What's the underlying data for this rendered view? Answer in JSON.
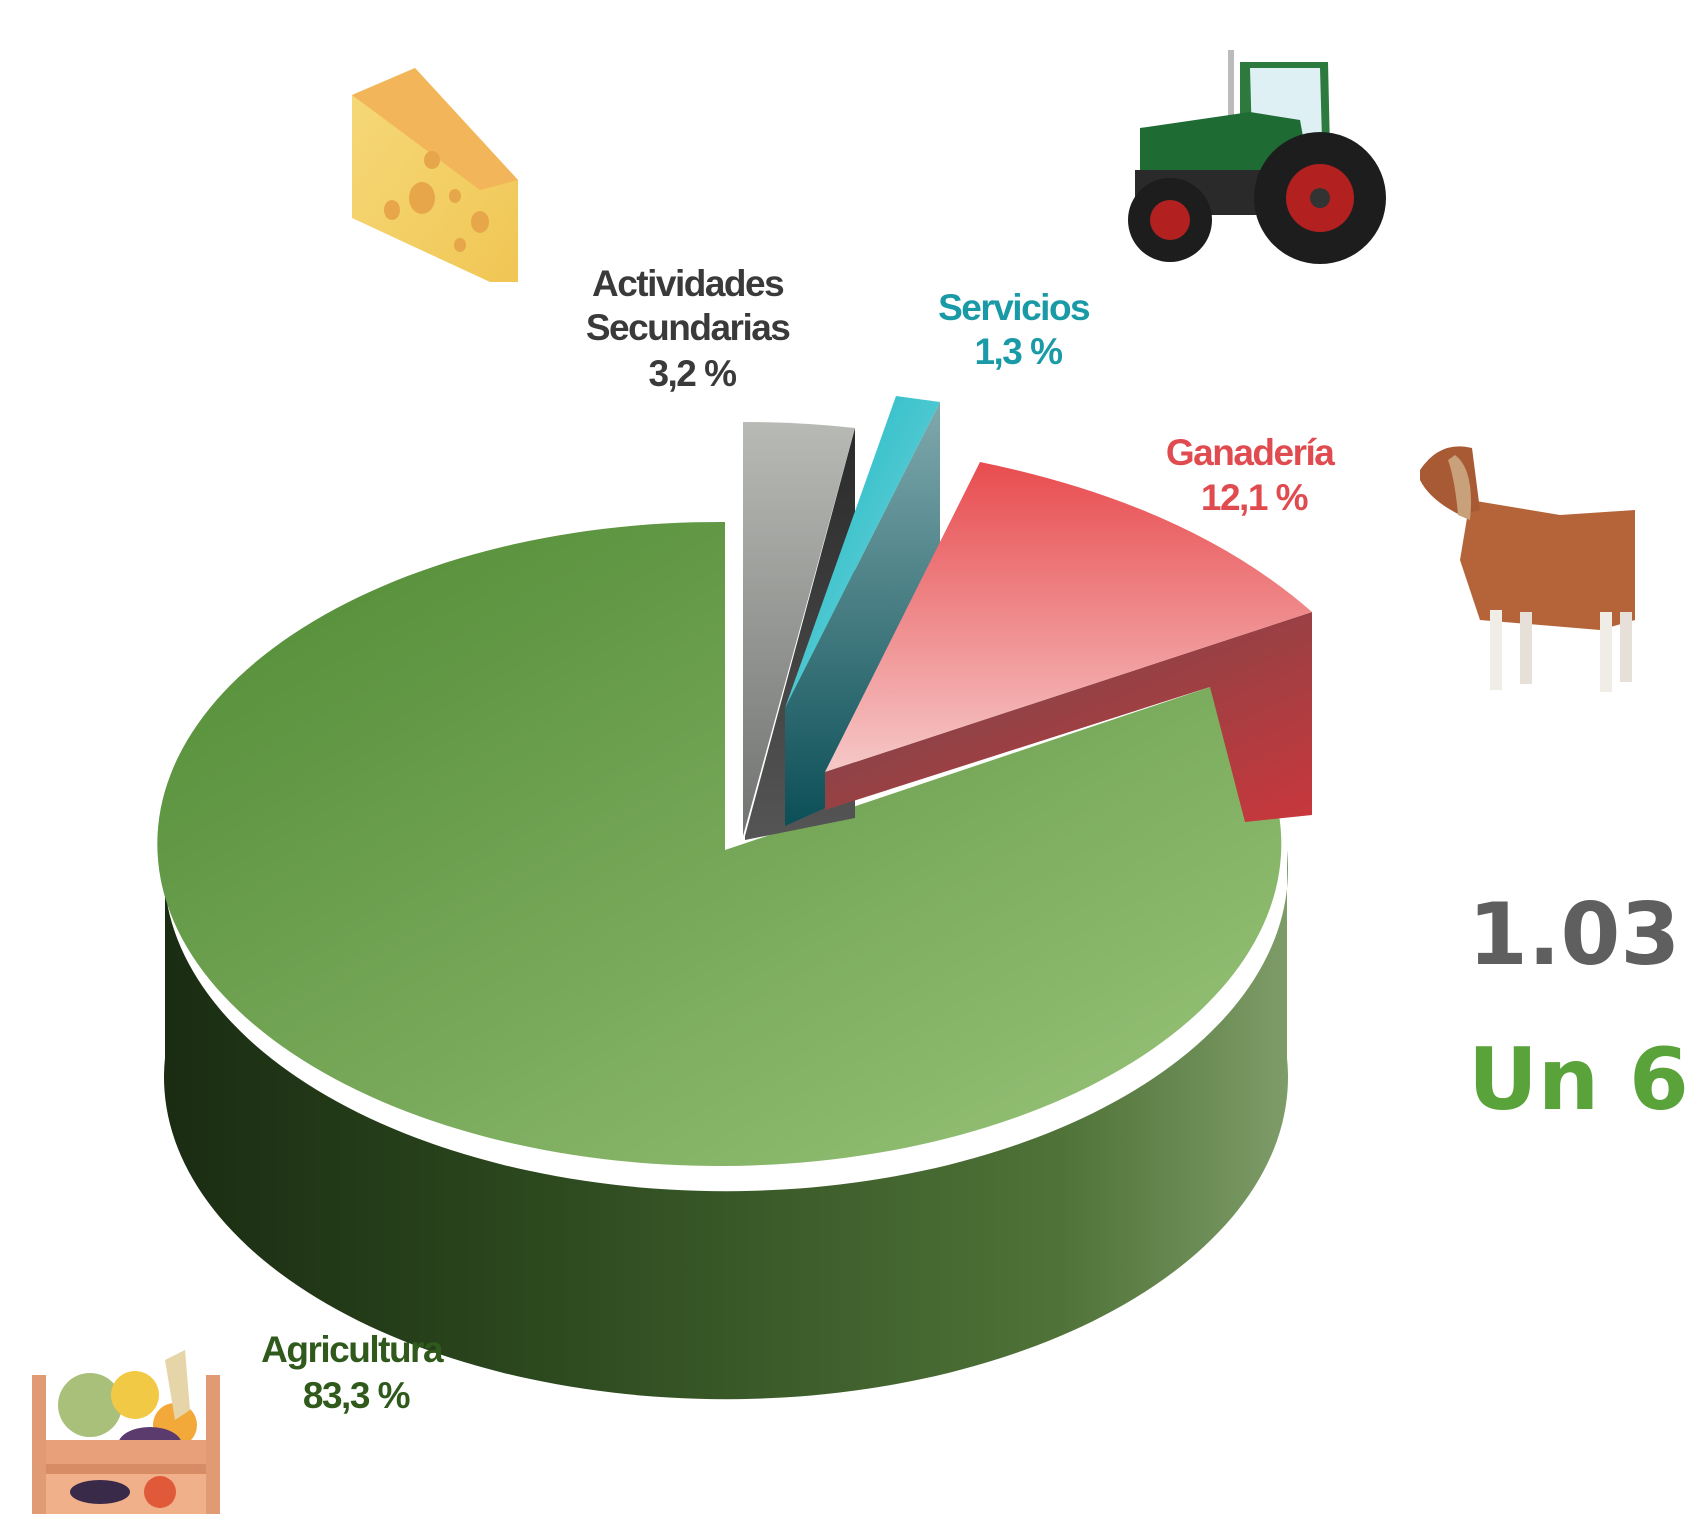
{
  "chart_data": {
    "type": "pie",
    "style": "3d-exploded",
    "slices": [
      {
        "label_lines": [
          "Agricultura"
        ],
        "value_label": "83,3 %",
        "value": 83.3,
        "color": "#6b9d4a"
      },
      {
        "label_lines": [
          "Actividades",
          "Secundarias"
        ],
        "value_label": "3,2 %",
        "value": 3.2,
        "color": "#a8aaa6"
      },
      {
        "label_lines": [
          "Servicios"
        ],
        "value_label": "1,3 %",
        "value": 1.3,
        "color": "#1fb3bf"
      },
      {
        "label_lines": [
          "Ganadería"
        ],
        "value_label": "12,1 %",
        "value": 12.1,
        "color": "#e8545a"
      }
    ],
    "label_colors": [
      "#2f5a1c",
      "#3a3a3a",
      "#1a9aa6",
      "#e04b4f"
    ]
  },
  "side_text": {
    "number": "1.03",
    "subtitle": "Un 6"
  },
  "decorations": [
    "cheese-icon",
    "tractor-icon",
    "goat-icon",
    "vegetable-crate-icon"
  ]
}
